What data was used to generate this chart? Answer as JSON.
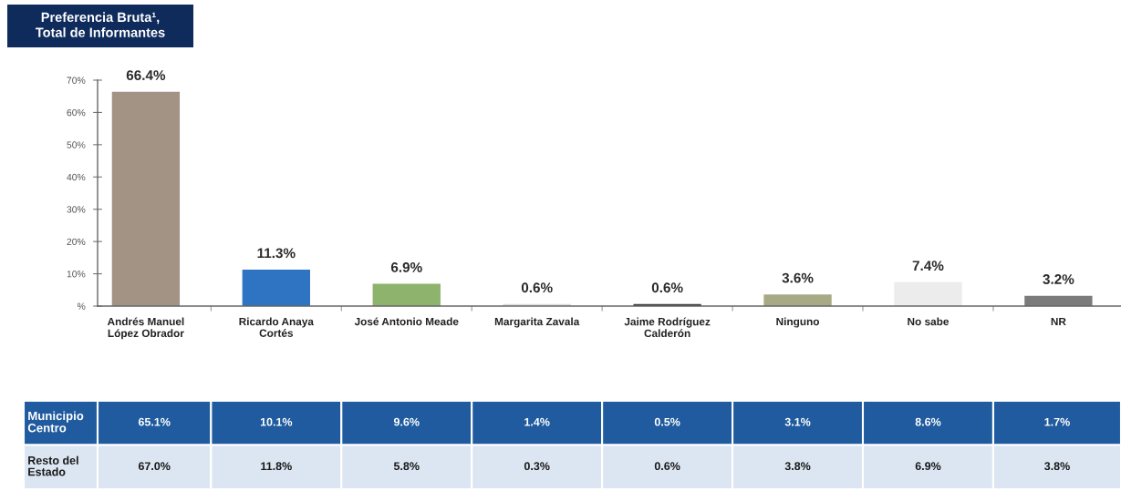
{
  "chart_data": [
    {
      "type": "bar",
      "title": "Preferencia Bruta¹,\nTotal de Informantes",
      "categories": [
        "Andrés Manuel\nLópez Obrador",
        "Ricardo Anaya\nCortés",
        "José Antonio Meade",
        "Margarita Zavala",
        "Jaime Rodríguez\nCalderón",
        "Ninguno",
        "No sabe",
        "NR"
      ],
      "values": [
        66.4,
        11.3,
        6.9,
        0.6,
        0.6,
        3.6,
        7.4,
        3.2
      ],
      "value_labels": [
        "66.4%",
        "11.3%",
        "6.9%",
        "0.6%",
        "0.6%",
        "3.6%",
        "7.4%",
        "3.2%"
      ],
      "colors": [
        "#a39384",
        "#2e74c2",
        "#8db36c",
        "#d9d9d9",
        "#404040",
        "#a8aa86",
        "#ececec",
        "#7b7b7b"
      ],
      "ylim": [
        0,
        70
      ],
      "yticks": [
        {
          "value": 0,
          "label": "%"
        },
        {
          "value": 10,
          "label": "10%"
        },
        {
          "value": 20,
          "label": "20%"
        },
        {
          "value": 30,
          "label": "30%"
        },
        {
          "value": 40,
          "label": "40%"
        },
        {
          "value": 50,
          "label": "50%"
        },
        {
          "value": 60,
          "label": "60%"
        },
        {
          "value": 70,
          "label": "70%"
        }
      ]
    },
    {
      "type": "heatmap",
      "categories": [
        null,
        null,
        null,
        null,
        null,
        null,
        null,
        null
      ],
      "y_categories": [
        "Municipio\nCentro",
        "Resto del\nEstado"
      ],
      "cells": [
        [
          65.1,
          10.1,
          9.6,
          1.4,
          0.5,
          3.1,
          8.6,
          1.7
        ],
        [
          67.0,
          11.8,
          5.8,
          0.3,
          0.6,
          3.8,
          6.9,
          3.8
        ]
      ],
      "cell_labels": [
        [
          "65.1%",
          "10.1%",
          "9.6%",
          "1.4%",
          "0.5%",
          "3.1%",
          "8.6%",
          "1.7%"
        ],
        [
          "67.0%",
          "11.8%",
          "5.8%",
          "0.3%",
          "0.6%",
          "3.8%",
          "6.9%",
          "3.8%"
        ]
      ]
    }
  ]
}
